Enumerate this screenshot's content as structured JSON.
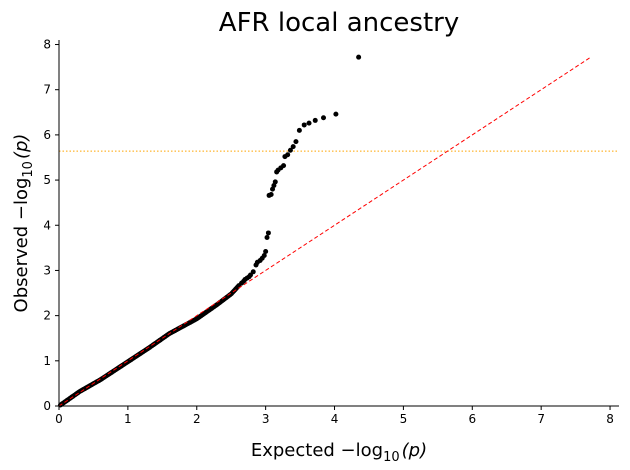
{
  "chart_data": {
    "type": "scatter",
    "title": "AFR local ancestry",
    "xlabel": {
      "prefix": "Expected −log",
      "sub": "10",
      "suffix": "(p)"
    },
    "ylabel": {
      "prefix": "Observed −log",
      "sub": "10",
      "suffix": "(p)"
    },
    "xlim": [
      0,
      8.13
    ],
    "ylim": [
      0,
      8.1
    ],
    "xticks": [
      0,
      1,
      2,
      3,
      4,
      5,
      6,
      7,
      8
    ],
    "yticks": [
      0,
      1,
      2,
      3,
      4,
      5,
      6,
      7,
      8
    ],
    "grid": false,
    "colors": {
      "points": "#000000",
      "diagonal": "#ff0000",
      "threshold": "#ffa500",
      "axes": "#000000"
    },
    "diagonal": {
      "from": [
        0,
        0
      ],
      "to": [
        7.72,
        7.72
      ],
      "style": "dashed"
    },
    "threshold": {
      "y": 5.64,
      "style": "dotted"
    },
    "bulk_trend": [
      [
        0.02,
        0.02
      ],
      [
        0.3,
        0.32
      ],
      [
        0.6,
        0.58
      ],
      [
        1.0,
        0.98
      ],
      [
        1.3,
        1.28
      ],
      [
        1.6,
        1.6
      ],
      [
        2.0,
        1.93
      ],
      [
        2.3,
        2.25
      ],
      [
        2.5,
        2.48
      ],
      [
        2.62,
        2.68
      ]
    ],
    "tail_points": [
      [
        2.65,
        2.72
      ],
      [
        2.68,
        2.76
      ],
      [
        2.7,
        2.8
      ],
      [
        2.73,
        2.83
      ],
      [
        2.76,
        2.86
      ],
      [
        2.78,
        2.9
      ],
      [
        2.82,
        2.97
      ],
      [
        2.86,
        3.12
      ],
      [
        2.88,
        3.18
      ],
      [
        2.92,
        3.22
      ],
      [
        2.95,
        3.27
      ],
      [
        2.98,
        3.33
      ],
      [
        3.0,
        3.42
      ],
      [
        3.02,
        3.73
      ],
      [
        3.04,
        3.83
      ],
      [
        3.05,
        4.66
      ],
      [
        3.08,
        4.68
      ],
      [
        3.1,
        4.8
      ],
      [
        3.12,
        4.88
      ],
      [
        3.14,
        4.96
      ],
      [
        3.16,
        5.18
      ],
      [
        3.18,
        5.22
      ],
      [
        3.22,
        5.27
      ],
      [
        3.26,
        5.32
      ],
      [
        3.28,
        5.52
      ],
      [
        3.32,
        5.56
      ],
      [
        3.36,
        5.66
      ],
      [
        3.4,
        5.74
      ],
      [
        3.44,
        5.85
      ],
      [
        3.49,
        6.1
      ],
      [
        3.56,
        6.22
      ],
      [
        3.63,
        6.26
      ],
      [
        3.72,
        6.32
      ],
      [
        3.84,
        6.38
      ],
      [
        4.02,
        6.46
      ],
      [
        4.35,
        7.72
      ]
    ]
  }
}
